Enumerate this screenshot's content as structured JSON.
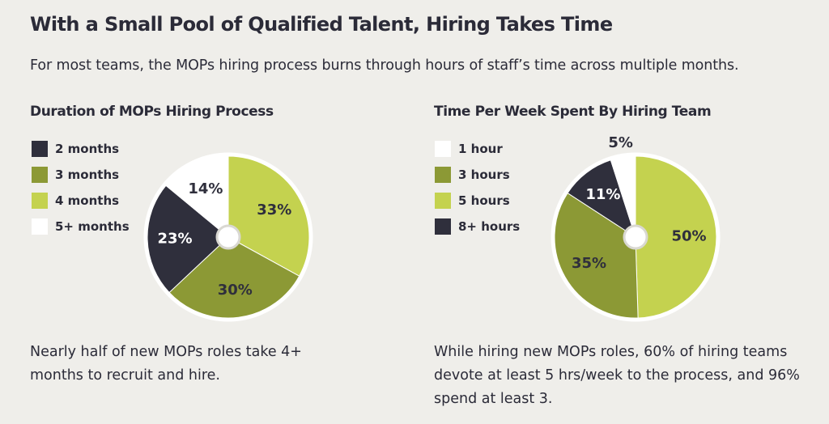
{
  "title": "With a Small Pool of Qualified Talent, Hiring Takes Time",
  "subtitle": "For most teams, the MOPs hiring process burns through hours of staff’s time across multiple months.",
  "chart_data": [
    {
      "type": "pie",
      "title": "Duration of MOPs Hiring Process",
      "legend_position": "left",
      "categories": [
        "2 months",
        "3 months",
        "4 months",
        "5+ months"
      ],
      "values": [
        23,
        30,
        33,
        14
      ],
      "labels": [
        "23%",
        "30%",
        "33%",
        "14%"
      ],
      "colors": [
        "#2f2f3c",
        "#8c9935",
        "#c4d24f",
        "#ffffff"
      ],
      "label_colors": [
        "#ffffff",
        "#2f2f3c",
        "#2f2f3c",
        "#2f2f3c"
      ],
      "draw_order": [
        2,
        1,
        0,
        3
      ],
      "caption": "Nearly half of new MOPs roles take 4+ months to recruit and hire."
    },
    {
      "type": "pie",
      "title": "Time Per Week Spent By Hiring Team",
      "legend_position": "left",
      "categories": [
        "1 hour",
        "3 hours",
        "5 hours",
        "8+ hours"
      ],
      "values": [
        5,
        35,
        50,
        11
      ],
      "labels": [
        "5%",
        "35%",
        "50%",
        "11%"
      ],
      "colors": [
        "#ffffff",
        "#8c9935",
        "#c4d24f",
        "#2f2f3c"
      ],
      "label_colors": [
        "#2f2f3c",
        "#2f2f3c",
        "#2f2f3c",
        "#ffffff"
      ],
      "draw_order": [
        2,
        1,
        3,
        0
      ],
      "caption": "While hiring new MOPs roles, 60% of hiring teams devote at least 5 hrs/week to the process, and 96% spend at least 3."
    }
  ],
  "colors": {
    "background": "#efeeea",
    "text": "#2b2b38",
    "ring": "#ffffff"
  }
}
